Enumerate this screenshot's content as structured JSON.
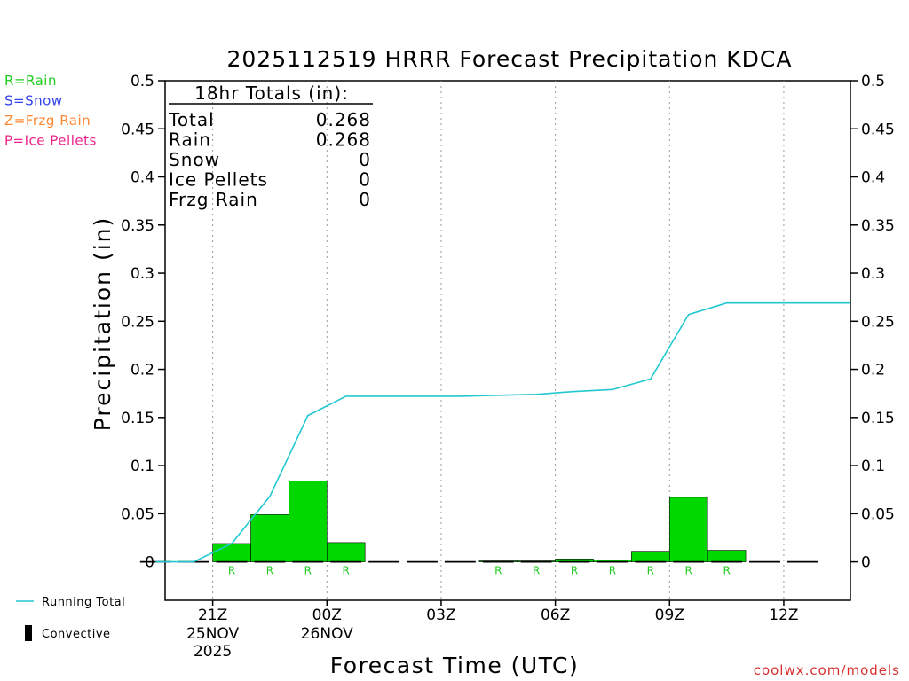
{
  "chart_data": {
    "type": "bar",
    "title": "2025112519 HRRR Forecast Precipitation KDCA",
    "xlabel": "Forecast Time (UTC)",
    "ylabel": "Precipitation (in)",
    "ylim": [
      -0.04,
      0.5
    ],
    "y_ticks": [
      0,
      0.05,
      0.1,
      0.15,
      0.2,
      0.25,
      0.3,
      0.35,
      0.4,
      0.45,
      0.5
    ],
    "y_tick_labels": [
      "0",
      "0.05",
      "0.1",
      "0.15",
      "0.2",
      "0.25",
      "0.3",
      "0.35",
      "0.4",
      "0.45",
      "0.5"
    ],
    "xlim": [
      19.75,
      37.75
    ],
    "x_ticks": [
      {
        "hour": 21,
        "label": "21Z",
        "date": "25NOV",
        "year": "2025"
      },
      {
        "hour": 24,
        "label": "00Z",
        "date": "26NOV",
        "year": ""
      },
      {
        "hour": 27,
        "label": "03Z",
        "date": "",
        "year": ""
      },
      {
        "hour": 30,
        "label": "06Z",
        "date": "",
        "year": ""
      },
      {
        "hour": 33,
        "label": "09Z",
        "date": "",
        "year": ""
      },
      {
        "hour": 36,
        "label": "12Z",
        "date": "",
        "year": ""
      }
    ],
    "hourly_bars": [
      {
        "hour": 20,
        "value": 0,
        "type": ""
      },
      {
        "hour": 21,
        "value": 0,
        "type": ""
      },
      {
        "hour": 22,
        "value": 0.019,
        "type": "R"
      },
      {
        "hour": 23,
        "value": 0.049,
        "type": "R"
      },
      {
        "hour": 24,
        "value": 0.084,
        "type": "R"
      },
      {
        "hour": 25,
        "value": 0.02,
        "type": "R"
      },
      {
        "hour": 26,
        "value": 0,
        "type": ""
      },
      {
        "hour": 27,
        "value": 0,
        "type": ""
      },
      {
        "hour": 28,
        "value": 0,
        "type": ""
      },
      {
        "hour": 29,
        "value": 0.001,
        "type": "R"
      },
      {
        "hour": 30,
        "value": 0.001,
        "type": "R"
      },
      {
        "hour": 31,
        "value": 0.003,
        "type": "R"
      },
      {
        "hour": 32,
        "value": 0.002,
        "type": "R"
      },
      {
        "hour": 33,
        "value": 0.011,
        "type": "R"
      },
      {
        "hour": 34,
        "value": 0.067,
        "type": "R"
      },
      {
        "hour": 35,
        "value": 0.012,
        "type": "R"
      },
      {
        "hour": 36,
        "value": 0,
        "type": ""
      },
      {
        "hour": 37,
        "value": 0,
        "type": ""
      }
    ],
    "running_total": {
      "name": "Running Total",
      "hours": [
        20,
        21,
        22,
        23,
        24,
        25,
        26,
        27,
        28,
        29,
        30,
        31,
        32,
        33,
        34,
        35,
        36,
        37
      ],
      "values": [
        0,
        0,
        0.019,
        0.068,
        0.152,
        0.172,
        0.172,
        0.172,
        0.172,
        0.173,
        0.174,
        0.177,
        0.179,
        0.19,
        0.257,
        0.269,
        0.269,
        0.269
      ]
    },
    "totals_box": {
      "heading": "18hr Totals (in):",
      "rows": [
        {
          "label": "Total",
          "value": "0.268"
        },
        {
          "label": "Rain",
          "value": "0.268"
        },
        {
          "label": "Snow",
          "value": "0"
        },
        {
          "label": "Ice Pellets",
          "value": "0"
        },
        {
          "label": "Frzg Rain",
          "value": "0"
        }
      ]
    },
    "type_legend": [
      {
        "text": "R=Rain",
        "color": "#22cc22"
      },
      {
        "text": "S=Snow",
        "color": "#3344ee"
      },
      {
        "text": "Z=Frzg Rain",
        "color": "#ff8833"
      },
      {
        "text": "P=Ice Pellets",
        "color": "#ee2288"
      }
    ],
    "bottom_legend": [
      {
        "text": "Running Total",
        "symbol": "line",
        "color": "#22c8d0"
      },
      {
        "text": "Convective",
        "symbol": "block",
        "color": "#000000"
      }
    ],
    "colors": {
      "bar": "#00d800",
      "rain_letter": "#22cc22",
      "running_total": "#22c8d0",
      "grid": "#999999"
    },
    "grid": "vertical dotted",
    "watermark": "coolwx.com/models"
  }
}
